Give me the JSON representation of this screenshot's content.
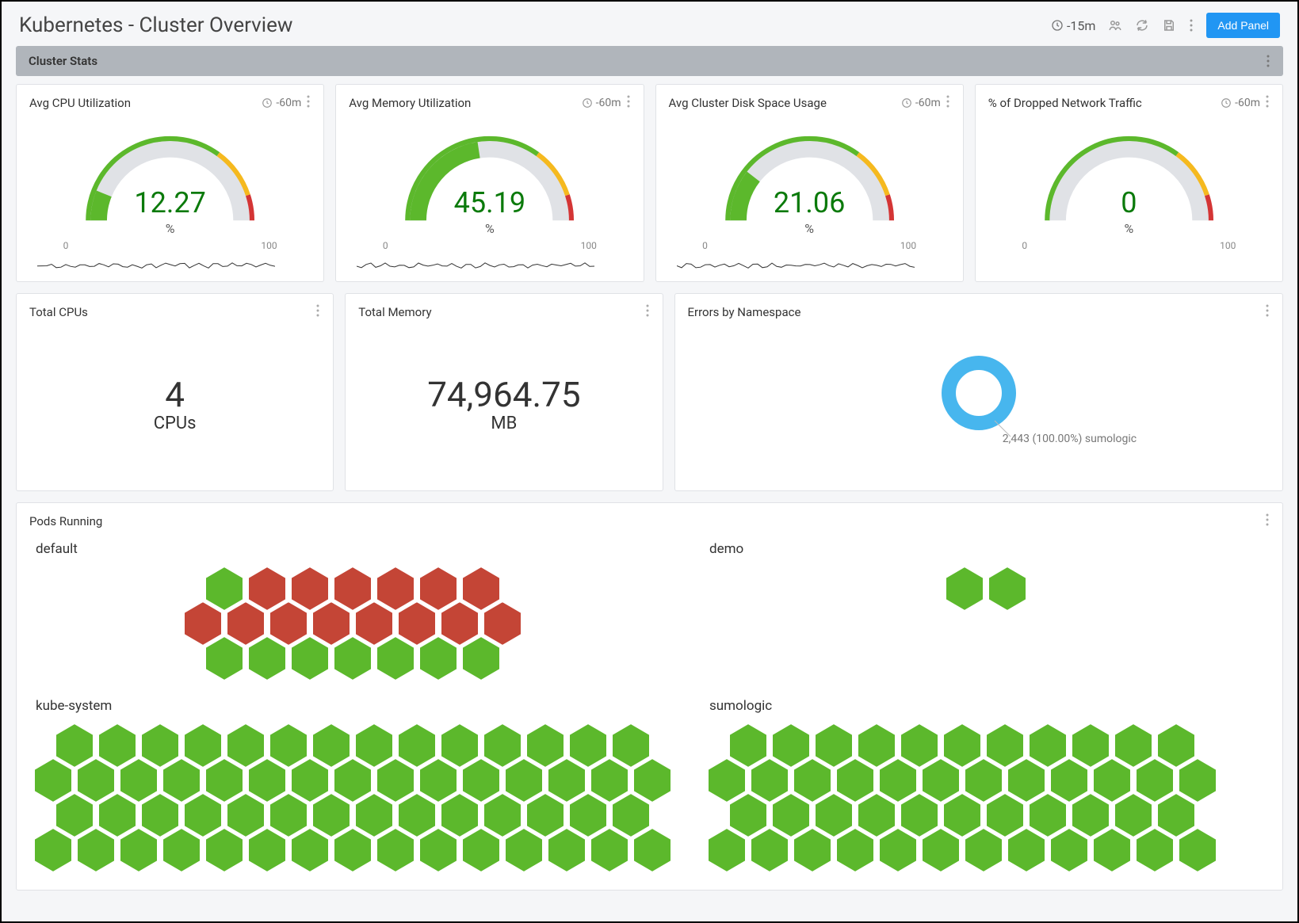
{
  "header": {
    "title": "Kubernetes - Cluster Overview",
    "time_range": "-15m",
    "add_panel_label": "Add Panel"
  },
  "section": {
    "title": "Cluster Stats"
  },
  "colors": {
    "gauge_track": "#e0e2e6",
    "gauge_green": "#5cb82c",
    "gauge_yellow": "#f5b91f",
    "gauge_red": "#d43535",
    "stat_text": "#333333",
    "gauge_value_text": "#0b7a0b",
    "donut_blue": "#47b6ee",
    "hex_green": "#5cb82c",
    "hex_red": "#c44536",
    "panel_border": "#e0e2e6",
    "bg": "#f5f6f8",
    "section_bar": "#b0b5bb",
    "button_blue": "#2196f3"
  },
  "gauge_common": {
    "unit": "%",
    "scale_min": "0",
    "scale_max": "100",
    "yellow_start": 70,
    "red_start": 90,
    "min": 0,
    "max": 100
  },
  "gauges": [
    {
      "title": "Avg CPU Utilization",
      "time_range": "-60m",
      "value": 12.27,
      "value_str": "12.27",
      "sparkline": true
    },
    {
      "title": "Avg Memory Utilization",
      "time_range": "-60m",
      "value": 45.19,
      "value_str": "45.19",
      "sparkline": true
    },
    {
      "title": "Avg Cluster Disk Space Usage",
      "time_range": "-60m",
      "value": 21.06,
      "value_str": "21.06",
      "sparkline": true
    },
    {
      "title": "% of Dropped Network Traffic",
      "time_range": "-60m",
      "value": 0,
      "value_str": "0",
      "sparkline": false
    }
  ],
  "stats": {
    "cpus": {
      "title": "Total CPUs",
      "value": "4",
      "unit": "CPUs"
    },
    "memory": {
      "title": "Total Memory",
      "value": "74,964.75",
      "unit": "MB"
    }
  },
  "errors": {
    "title": "Errors by Namespace",
    "slices": [
      {
        "label": "sumologic",
        "count_str": "2,443",
        "pct_str": "100.00%",
        "color": "#47b6ee",
        "pct": 100
      }
    ],
    "label_text": "2,443 (100.00%) sumologic"
  },
  "pods": {
    "title": "Pods Running",
    "namespaces": [
      {
        "name": "default",
        "align": "center",
        "rows": [
          [
            "g",
            "r",
            "r",
            "r",
            "r",
            "r",
            "r"
          ],
          [
            "r",
            "r",
            "r",
            "r",
            "r",
            "r",
            "r",
            "r"
          ],
          [
            "g",
            "g",
            "g",
            "g",
            "g",
            "g",
            "g"
          ]
        ]
      },
      {
        "name": "demo",
        "align": "center",
        "rows": [
          [
            "g",
            "g"
          ]
        ]
      },
      {
        "name": "kube-system",
        "align": "left",
        "rows": [
          [
            "g",
            "g",
            "g",
            "g",
            "g",
            "g",
            "g",
            "g",
            "g",
            "g",
            "g",
            "g",
            "g",
            "g"
          ],
          [
            "g",
            "g",
            "g",
            "g",
            "g",
            "g",
            "g",
            "g",
            "g",
            "g",
            "g",
            "g",
            "g",
            "g",
            "g"
          ],
          [
            "g",
            "g",
            "g",
            "g",
            "g",
            "g",
            "g",
            "g",
            "g",
            "g",
            "g",
            "g",
            "g",
            "g"
          ],
          [
            "g",
            "g",
            "g",
            "g",
            "g",
            "g",
            "g",
            "g",
            "g",
            "g",
            "g",
            "g",
            "g",
            "g",
            "g"
          ]
        ]
      },
      {
        "name": "sumologic",
        "align": "left",
        "rows": [
          [
            "g",
            "g",
            "g",
            "g",
            "g",
            "g",
            "g",
            "g",
            "g",
            "g",
            "g"
          ],
          [
            "g",
            "g",
            "g",
            "g",
            "g",
            "g",
            "g",
            "g",
            "g",
            "g",
            "g",
            "g"
          ],
          [
            "g",
            "g",
            "g",
            "g",
            "g",
            "g",
            "g",
            "g",
            "g",
            "g",
            "g"
          ],
          [
            "g",
            "g",
            "g",
            "g",
            "g",
            "g",
            "g",
            "g",
            "g",
            "g",
            "g",
            "g"
          ]
        ]
      }
    ]
  }
}
